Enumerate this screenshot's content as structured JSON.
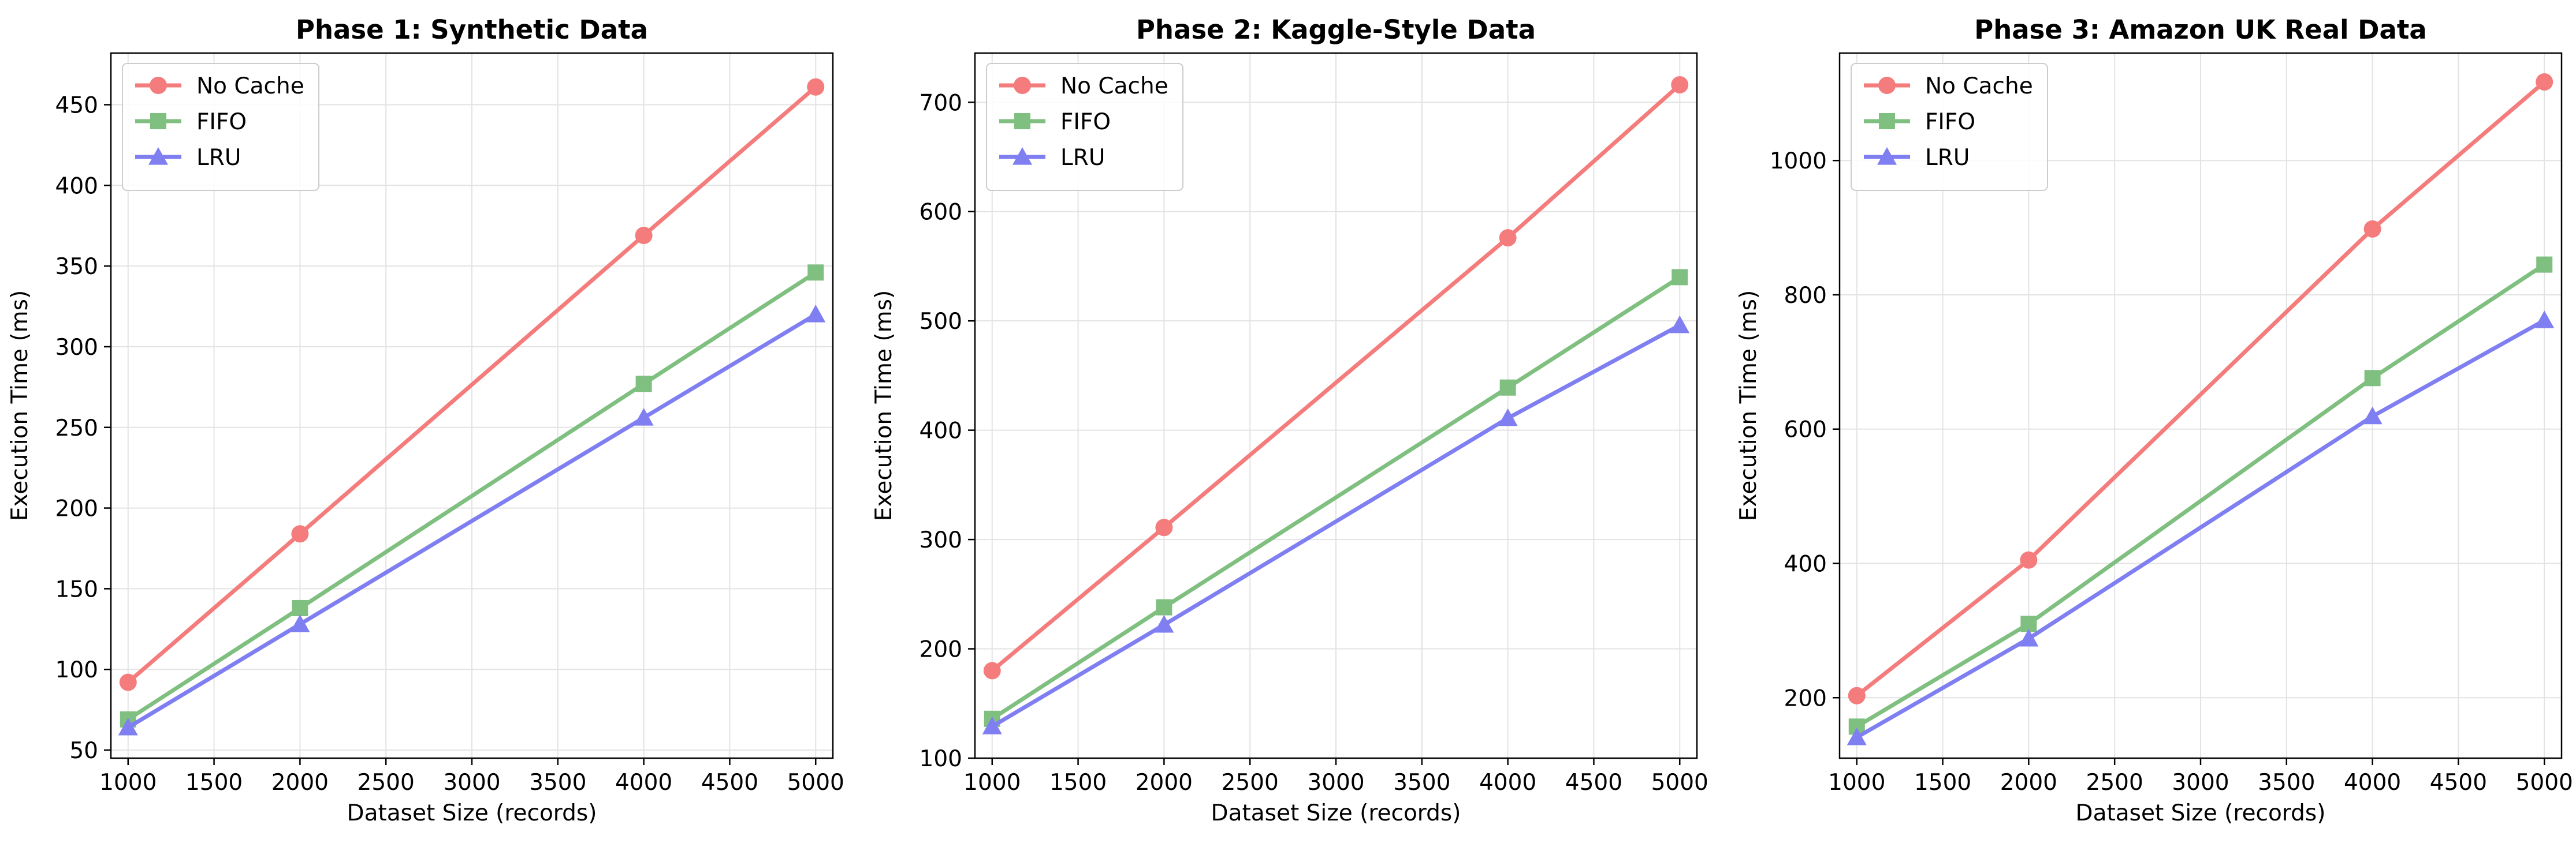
{
  "chart_data": [
    {
      "type": "line",
      "title": "Phase 1: Synthetic Data",
      "xlabel": "Dataset Size (records)",
      "ylabel": "Execution Time (ms)",
      "x": [
        1000,
        2000,
        4000,
        5000
      ],
      "xlim": [
        900,
        5100
      ],
      "ylim": [
        45,
        482
      ],
      "xticks": [
        1000,
        1500,
        2000,
        2500,
        3000,
        3500,
        4000,
        4500,
        5000
      ],
      "yticks": [
        50,
        100,
        150,
        200,
        250,
        300,
        350,
        400,
        450
      ],
      "grid": true,
      "legend_position": "top-left",
      "series": [
        {
          "name": "No Cache",
          "values": [
            92,
            184,
            369,
            461
          ],
          "color": "#f47c7c",
          "marker": "circle"
        },
        {
          "name": "FIFO",
          "values": [
            69,
            138,
            277,
            346
          ],
          "color": "#7fbf7f",
          "marker": "square"
        },
        {
          "name": "LRU",
          "values": [
            64,
            128,
            256,
            320
          ],
          "color": "#7f7ff2",
          "marker": "triangle"
        }
      ]
    },
    {
      "type": "line",
      "title": "Phase 2: Kaggle-Style Data",
      "xlabel": "Dataset Size (records)",
      "ylabel": "Execution Time (ms)",
      "x": [
        1000,
        2000,
        4000,
        5000
      ],
      "xlim": [
        900,
        5100
      ],
      "ylim": [
        100,
        745
      ],
      "xticks": [
        1000,
        1500,
        2000,
        2500,
        3000,
        3500,
        4000,
        4500,
        5000
      ],
      "yticks": [
        100,
        200,
        300,
        400,
        500,
        600,
        700
      ],
      "grid": true,
      "legend_position": "top-left",
      "series": [
        {
          "name": "No Cache",
          "values": [
            180,
            311,
            576,
            716
          ],
          "color": "#f47c7c",
          "marker": "circle"
        },
        {
          "name": "FIFO",
          "values": [
            136,
            238,
            439,
            540
          ],
          "color": "#7fbf7f",
          "marker": "square"
        },
        {
          "name": "LRU",
          "values": [
            129,
            222,
            411,
            496
          ],
          "color": "#7f7ff2",
          "marker": "triangle"
        }
      ]
    },
    {
      "type": "line",
      "title": "Phase 3: Amazon UK Real Data",
      "xlabel": "Dataset Size (records)",
      "ylabel": "Execution Time (ms)",
      "x": [
        1000,
        2000,
        4000,
        5000
      ],
      "xlim": [
        900,
        5100
      ],
      "ylim": [
        110,
        1160
      ],
      "xticks": [
        1000,
        1500,
        2000,
        2500,
        3000,
        3500,
        4000,
        4500,
        5000
      ],
      "yticks": [
        200,
        400,
        600,
        800,
        1000
      ],
      "grid": true,
      "legend_position": "top-left",
      "series": [
        {
          "name": "No Cache",
          "values": [
            203,
            405,
            898,
            1117
          ],
          "color": "#f47c7c",
          "marker": "circle"
        },
        {
          "name": "FIFO",
          "values": [
            157,
            310,
            676,
            845
          ],
          "color": "#7fbf7f",
          "marker": "square"
        },
        {
          "name": "LRU",
          "values": [
            141,
            288,
            619,
            762
          ],
          "color": "#7f7ff2",
          "marker": "triangle"
        }
      ]
    }
  ]
}
